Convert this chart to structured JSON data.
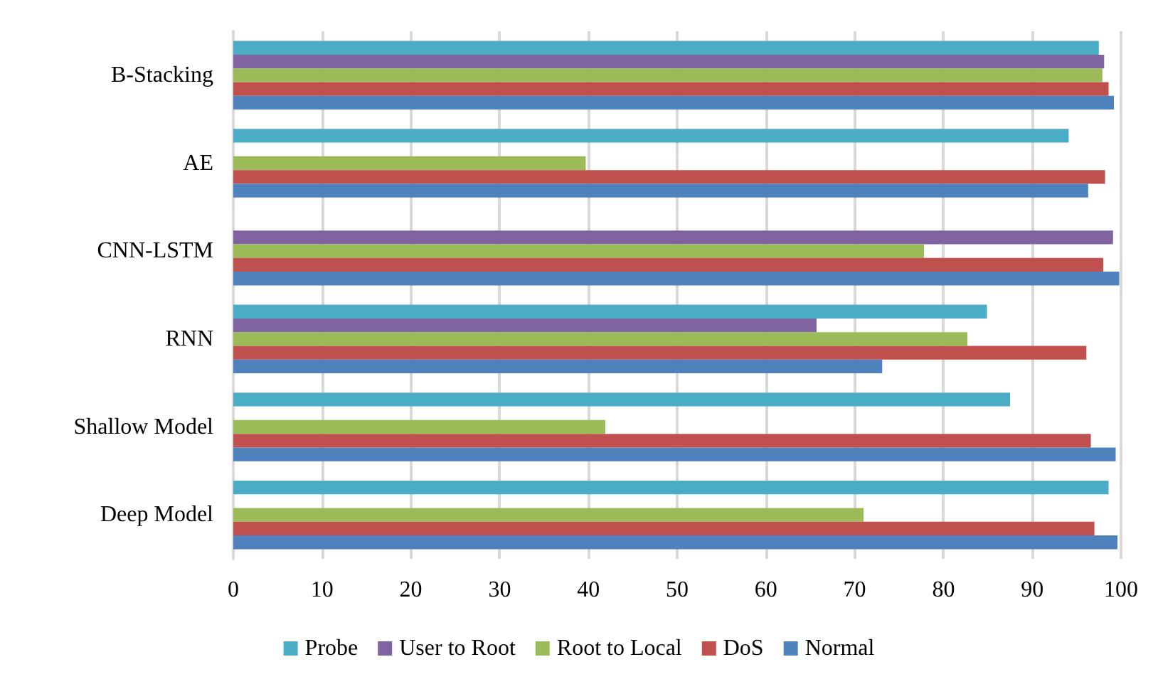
{
  "chart_data": {
    "type": "bar",
    "orientation": "horizontal",
    "categories": [
      "B-Stacking",
      "AE",
      "CNN-LSTM",
      "RNN",
      "Shallow Model",
      "Deep Model"
    ],
    "series": [
      {
        "name": "Probe",
        "color": "#4bacc6",
        "values": [
          97.5,
          94.1,
          null,
          84.9,
          87.5,
          98.6
        ]
      },
      {
        "name": "User to Root",
        "color": "#8064a2",
        "values": [
          98.1,
          null,
          99.1,
          65.7,
          null,
          null
        ]
      },
      {
        "name": "Root to Local",
        "color": "#9bbb59",
        "values": [
          97.9,
          39.7,
          77.8,
          82.7,
          41.9,
          71
        ]
      },
      {
        "name": "DoS",
        "color": "#c0504d",
        "values": [
          98.6,
          98.2,
          98,
          96.1,
          96.6,
          97
        ]
      },
      {
        "name": "Normal",
        "color": "#4f81bd",
        "values": [
          99.2,
          96.3,
          99.8,
          73.1,
          99.4,
          99.6
        ]
      }
    ],
    "xlim": [
      0,
      100
    ],
    "xticks": [
      0,
      10,
      20,
      30,
      40,
      50,
      60,
      70,
      80,
      90,
      100
    ],
    "grid": "x",
    "legend": "bottom"
  }
}
